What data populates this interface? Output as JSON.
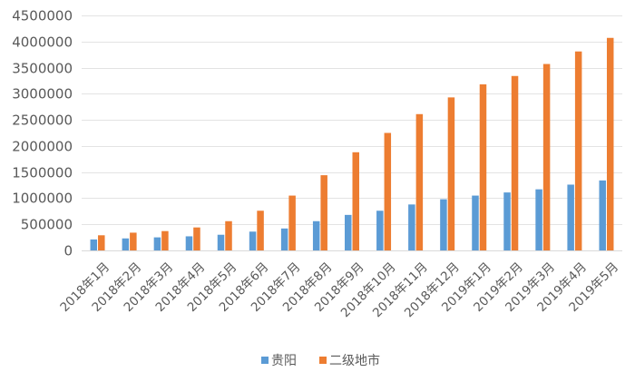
{
  "chart_data": {
    "type": "bar",
    "categories": [
      "2018年1月",
      "2018年2月",
      "2018年3月",
      "2018年4月",
      "2018年5月",
      "2018年6月",
      "2018年7月",
      "2018年8月",
      "2018年9月",
      "2018年10月",
      "2018年11月",
      "2018年12月",
      "2019年1月",
      "2019年2月",
      "2019年3月",
      "2019年4月",
      "2019年5月"
    ],
    "series": [
      {
        "name": "贵阳",
        "color": "#5b9bd5",
        "values": [
          210000,
          230000,
          250000,
          270000,
          300000,
          360000,
          420000,
          560000,
          680000,
          760000,
          880000,
          980000,
          1050000,
          1110000,
          1170000,
          1260000,
          1340000
        ]
      },
      {
        "name": "二级地市",
        "color": "#ed7d31",
        "values": [
          290000,
          340000,
          370000,
          440000,
          560000,
          760000,
          1050000,
          1440000,
          1880000,
          2250000,
          2610000,
          2930000,
          3180000,
          3340000,
          3570000,
          3810000,
          4070000
        ]
      }
    ],
    "ylim": [
      0,
      4500000
    ],
    "yticks": [
      0,
      500000,
      1000000,
      1500000,
      2000000,
      2500000,
      3000000,
      3500000,
      4000000,
      4500000
    ],
    "grid": true,
    "legend_position": "bottom-center",
    "title": "",
    "xlabel": "",
    "ylabel": ""
  }
}
